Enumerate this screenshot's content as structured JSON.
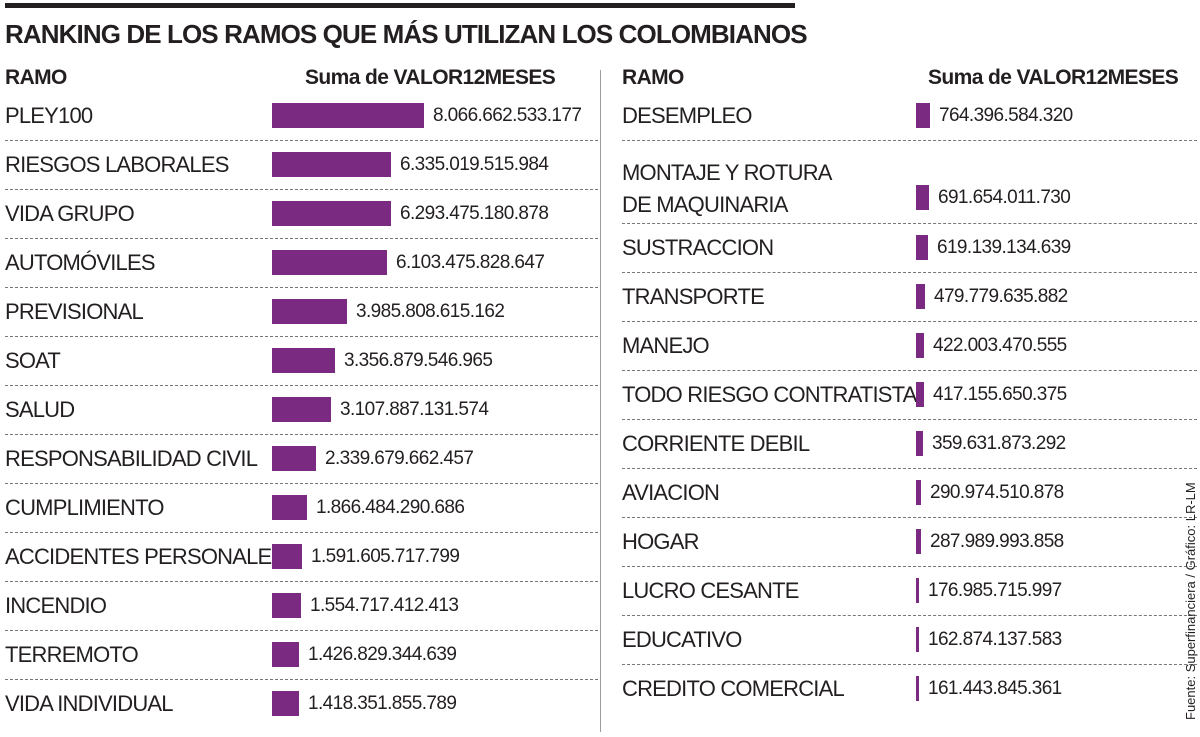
{
  "title": "RANKING DE LOS RAMOS QUE MÁS UTILIZAN LOS COLOMBIANOS",
  "headers": {
    "left_label": "RAMO",
    "left_value": "Suma de VALOR12MESES",
    "right_label": "RAMO",
    "right_value": "Suma de VALOR12MESES"
  },
  "source": "Fuente: Superfinanciera / Gráfico: LR-LM",
  "chart_data": {
    "type": "bar",
    "orientation": "horizontal",
    "title": "RANKING DE LOS RAMOS QUE MÁS UTILIZAN LOS COLOMBIANOS",
    "xlabel": "Suma de VALOR12MESES",
    "ylabel": "RAMO",
    "bar_color": "#7b2a82",
    "categories": [
      "PLEY100",
      "RIESGOS LABORALES",
      "VIDA GRUPO",
      "AUTOMÓVILES",
      "PREVISIONAL",
      "SOAT",
      "SALUD",
      "RESPONSABILIDAD CIVIL",
      "CUMPLIMIENTO",
      "ACCIDENTES PERSONALES",
      "INCENDIO",
      "TERREMOTO",
      "VIDA INDIVIDUAL",
      "DESEMPLEO",
      "MONTAJE Y ROTURA DE MAQUINARIA",
      "SUSTRACCION",
      "TRANSPORTE",
      "MANEJO",
      "TODO RIESGO CONTRATISTA",
      "CORRIENTE DEBIL",
      "AVIACION",
      "HOGAR",
      "LUCRO CESANTE",
      "EDUCATIVO",
      "CREDITO COMERCIAL"
    ],
    "values": [
      8066662533177,
      6335019515984,
      6293475180878,
      6103475828647,
      3985808615162,
      3356879546965,
      3107887131574,
      2339679662457,
      1866484290686,
      1591605717799,
      1554717412413,
      1426829344639,
      1418351855789,
      764396584320,
      691654011730,
      619139134639,
      479779635882,
      422003470555,
      417155650375,
      359631873292,
      290974510878,
      287989993858,
      176985715997,
      162874137583,
      161443845361
    ],
    "value_labels": [
      "8.066.662.533.177",
      "6.335.019.515.984",
      "6.293.475.180.878",
      "6.103.475.828.647",
      "3.985.808.615.162",
      "3.356.879.546.965",
      "3.107.887.131.574",
      "2.339.679.662.457",
      "1.866.484.290.686",
      "1.591.605.717.799",
      "1.554.717.412.413",
      "1.426.829.344.639",
      "1.418.351.855.789",
      "764.396.584.320",
      "691.654.011.730",
      "619.139.134.639",
      "479.779.635.882",
      "422.003.470.555",
      "417.155.650.375",
      "359.631.873.292",
      "290.974.510.878",
      "287.989.993.858",
      "176.985.715.997",
      "162.874.137.583",
      "161.443.845.361"
    ]
  }
}
